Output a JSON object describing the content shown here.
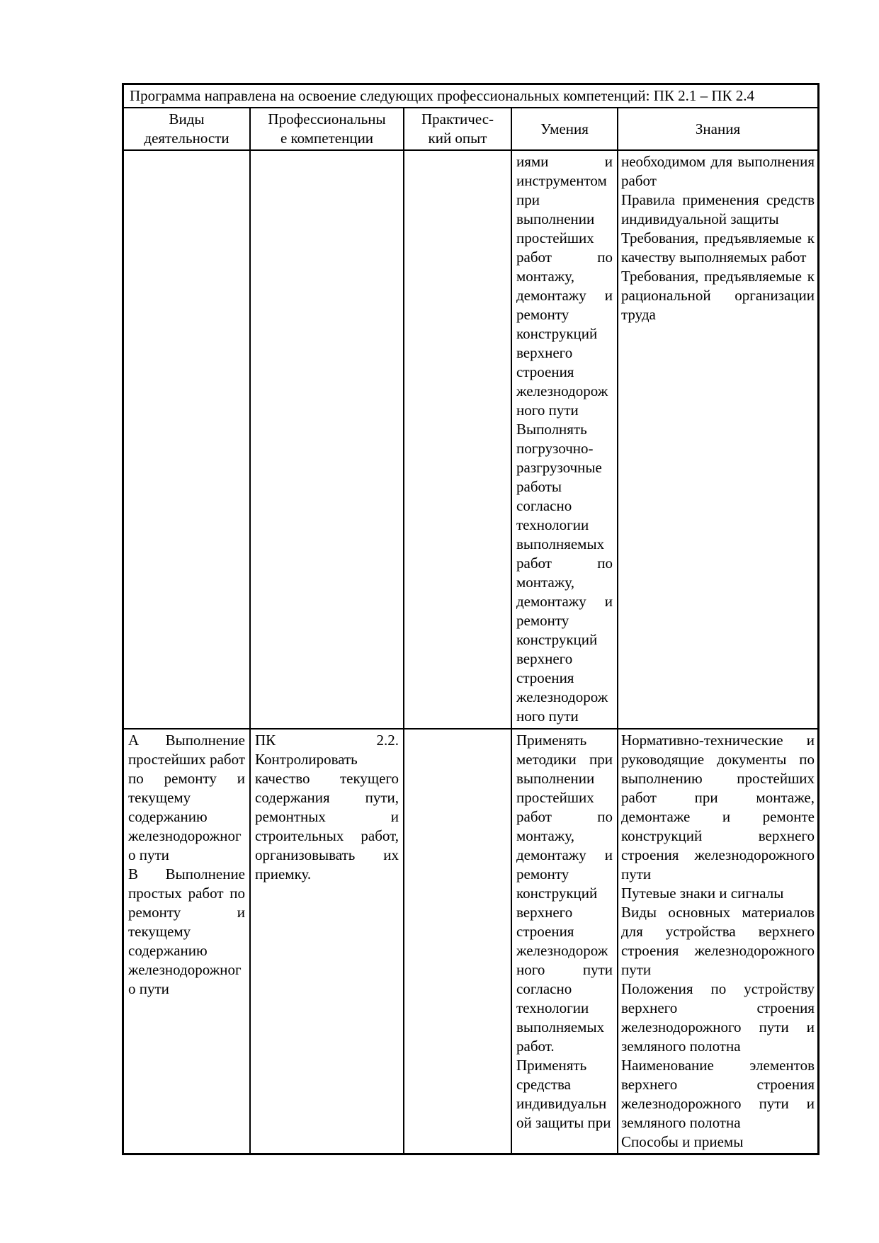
{
  "colors": {
    "background": "#ffffff",
    "text": "#000000",
    "table_border": "#000000"
  },
  "document": {
    "intro": "Программа направлена на освоение следующих профессиональных компетенций: ПК 2.1 – ПК 2.4",
    "table": {
      "columns": [
        {
          "key": "activities",
          "label": "Виды деятельности"
        },
        {
          "key": "competencies",
          "label": "Профессиональны\nе компетенции"
        },
        {
          "key": "experience",
          "label": "Практичес-\nкий опыт"
        },
        {
          "key": "skills",
          "label": "Умения"
        },
        {
          "key": "knowledge",
          "label": "Знания"
        }
      ],
      "rows": [
        {
          "activities": [],
          "competencies": [],
          "experience": [],
          "skills": [
            "иями и инструментом при выполнении простейших работ по монтажу, демонтажу и ремонту конструкций верхнего строения железнодорожного пути",
            "Выполнять погрузочно-разгрузочные работы согласно технологии выполняемых работ по монтажу, демонтажу и ремонту конструкций верхнего строения железнодорожного пути"
          ],
          "knowledge": [
            "необходимом для выполнения работ",
            "Правила применения средств индивидуальной защиты",
            "Требования, предъявляемые к качеству выполняемых работ",
            "Требования, предъявляемые к рациональной организации труда"
          ]
        },
        {
          "activities": [
            "А Выполнение простейших работ по ремонту и текущему содержанию железнодорожного пути",
            "В Выполнение простых работ по ремонту и текущему содержанию железнодорожного пути"
          ],
          "competencies": [
            "ПК 2.2. Контролировать качество текущего содержания пути, ремонтных и строительных работ, организовывать их приемку."
          ],
          "experience": [],
          "skills": [
            "Применять методики при выполнении простейших работ по монтажу, демонтажу и ремонту конструкций верхнего строения железнодорожного пути согласно технологии выполняемых работ.",
            "Применять средства индивидуальной защиты при"
          ],
          "knowledge": [
            "Нормативно-технические и руководящие документы по выполнению простейших работ при монтаже, демонтаже и ремонте конструкций верхнего строения железнодорожного пути",
            "Путевые знаки и сигналы",
            "Виды основных материалов для устройства верхнего строения железнодорожного пути",
            "Положения по устройству верхнего строения железнодорожного пути и земляного полотна",
            "Наименование элементов верхнего строения железнодорожного пути и земляного полотна",
            "Способы и приемы"
          ]
        }
      ]
    }
  }
}
